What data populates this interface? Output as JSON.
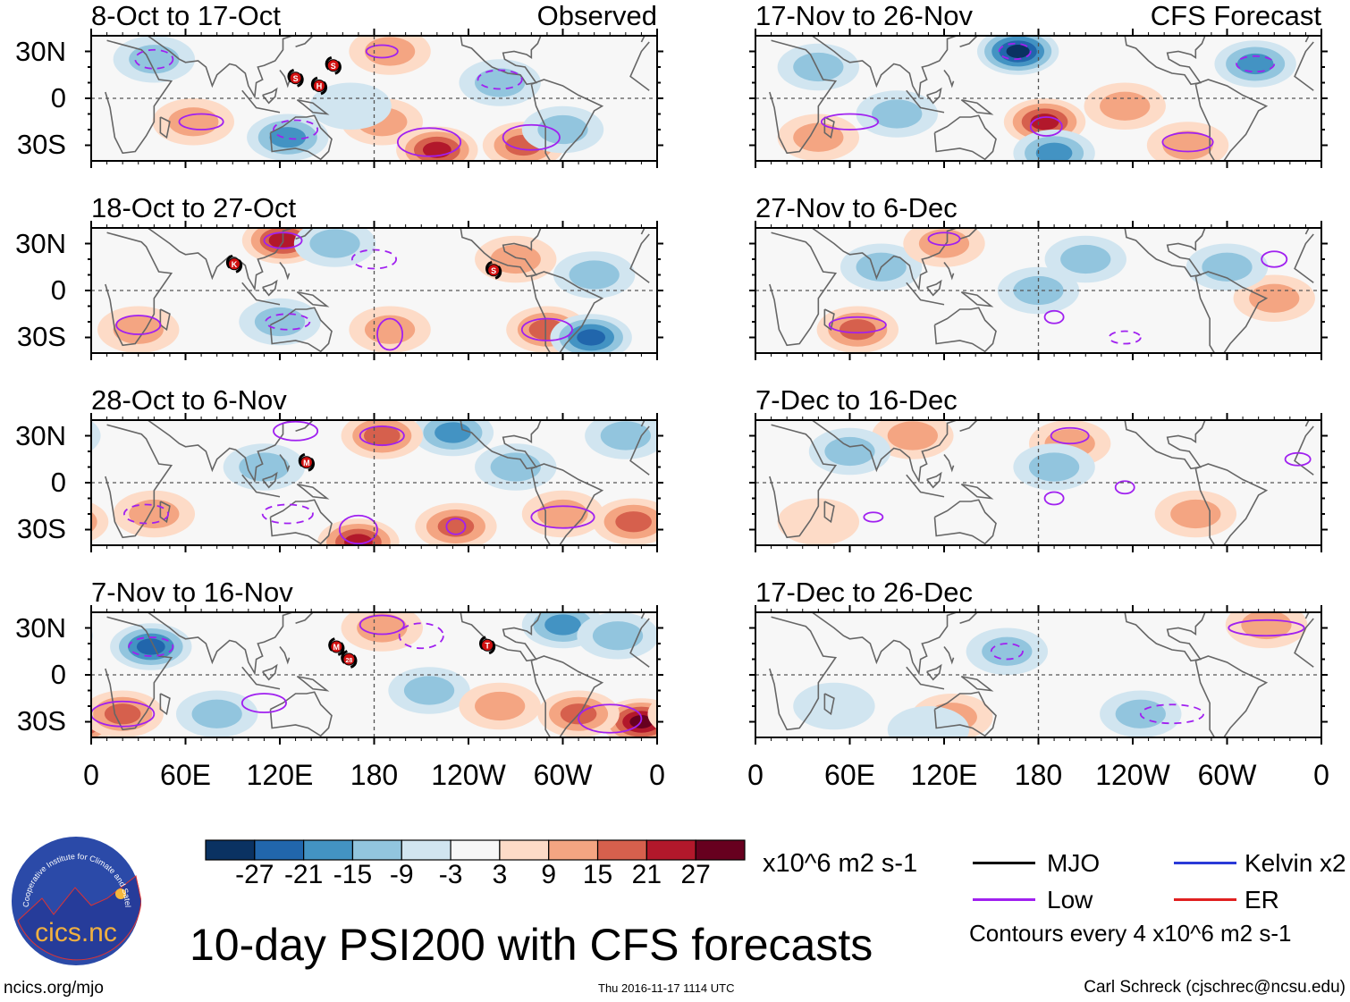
{
  "chart_data": {
    "type": "heatmap",
    "title": "10-day PSI200 with CFS forecasts",
    "column_labels": [
      "Observed",
      "CFS Forecast"
    ],
    "x_ticks": [
      "0",
      "60E",
      "120E",
      "180",
      "120W",
      "60W",
      "0"
    ],
    "y_ticks": [
      "30N",
      "0",
      "30S"
    ],
    "lat_range": [
      -40,
      40
    ],
    "lon_range": [
      0,
      360
    ],
    "panels": [
      {
        "title": "8-Oct to 17-Oct",
        "column": "Observed",
        "features": [
          [
            125,
            -25,
            -12
          ],
          [
            220,
            -33,
            21
          ],
          [
            275,
            -30,
            15
          ],
          [
            185,
            -15,
            9
          ],
          [
            190,
            30,
            9
          ],
          [
            40,
            25,
            -6
          ],
          [
            65,
            -15,
            9
          ],
          [
            300,
            -20,
            -9
          ],
          [
            260,
            10,
            -6
          ],
          [
            165,
            -5,
            -3
          ]
        ],
        "contours": [
          [
            70,
            -15,
            14,
            5,
            0
          ],
          [
            215,
            -28,
            20,
            9,
            0
          ],
          [
            280,
            -25,
            18,
            8,
            0
          ],
          [
            185,
            30,
            10,
            4,
            0
          ],
          [
            40,
            25,
            12,
            6,
            1
          ],
          [
            130,
            -20,
            14,
            6,
            1
          ],
          [
            260,
            12,
            14,
            6,
            1
          ]
        ],
        "storms": [
          {
            "label": "S",
            "lon": 130,
            "lat": 13
          },
          {
            "label": "H",
            "lon": 145,
            "lat": 8
          },
          {
            "label": "S",
            "lon": 154,
            "lat": 21
          }
        ]
      },
      {
        "title": "17-Nov to 26-Nov",
        "column": "CFS Forecast",
        "features": [
          [
            167,
            30,
            -27
          ],
          [
            184,
            -15,
            21
          ],
          [
            318,
            22,
            -15
          ],
          [
            190,
            -35,
            -12
          ],
          [
            40,
            20,
            -9
          ],
          [
            275,
            -30,
            9
          ],
          [
            235,
            -5,
            6
          ],
          [
            90,
            -10,
            -9
          ],
          [
            40,
            -25,
            9
          ]
        ],
        "contours": [
          [
            60,
            -15,
            18,
            5,
            0
          ],
          [
            185,
            -18,
            10,
            6,
            0
          ],
          [
            275,
            -28,
            16,
            6,
            0
          ],
          [
            318,
            22,
            12,
            5,
            1
          ],
          [
            165,
            30,
            10,
            5,
            1
          ]
        ],
        "storms": []
      },
      {
        "title": "18-Oct to 27-Oct",
        "column": "Observed",
        "features": [
          [
            122,
            32,
            21
          ],
          [
            155,
            30,
            -9
          ],
          [
            290,
            -25,
            12
          ],
          [
            318,
            -30,
            -18
          ],
          [
            30,
            -25,
            9
          ],
          [
            120,
            -20,
            -6
          ],
          [
            270,
            20,
            6
          ],
          [
            190,
            -25,
            6
          ],
          [
            320,
            10,
            -6
          ]
        ],
        "contours": [
          [
            122,
            32,
            12,
            5,
            0
          ],
          [
            290,
            -25,
            16,
            7,
            0
          ],
          [
            190,
            -28,
            8,
            10,
            0
          ],
          [
            30,
            -22,
            14,
            6,
            0
          ],
          [
            125,
            -20,
            14,
            5,
            1
          ],
          [
            180,
            20,
            14,
            6,
            1
          ]
        ],
        "storms": [
          {
            "label": "K",
            "lon": 91,
            "lat": 17
          },
          {
            "label": "S",
            "lon": 256,
            "lat": 13
          }
        ]
      },
      {
        "title": "27-Nov to 6-Dec",
        "column": "CFS Forecast",
        "features": [
          [
            80,
            15,
            -6
          ],
          [
            180,
            0,
            -6
          ],
          [
            65,
            -25,
            12
          ],
          [
            120,
            30,
            6
          ],
          [
            330,
            -5,
            6
          ],
          [
            210,
            20,
            -6
          ],
          [
            300,
            15,
            -6
          ]
        ],
        "contours": [
          [
            65,
            -22,
            18,
            5,
            0
          ],
          [
            120,
            33,
            10,
            4,
            0
          ],
          [
            190,
            -17,
            6,
            4,
            0
          ],
          [
            235,
            -30,
            10,
            4,
            1
          ],
          [
            330,
            20,
            8,
            5,
            0
          ]
        ],
        "storms": []
      },
      {
        "title": "28-Oct to 6-Nov",
        "column": "Observed",
        "features": [
          [
            270,
            10,
            -9
          ],
          [
            230,
            32,
            -12
          ],
          [
            185,
            30,
            12
          ],
          [
            170,
            -38,
            21
          ],
          [
            232,
            -28,
            15
          ],
          [
            345,
            -25,
            12
          ],
          [
            300,
            -20,
            9
          ],
          [
            110,
            10,
            -6
          ],
          [
            40,
            -20,
            9
          ],
          [
            340,
            30,
            -9
          ]
        ],
        "contours": [
          [
            185,
            30,
            14,
            6,
            0
          ],
          [
            170,
            -30,
            12,
            9,
            0
          ],
          [
            232,
            -28,
            6,
            5,
            0
          ],
          [
            300,
            -22,
            20,
            7,
            0
          ],
          [
            125,
            -20,
            16,
            6,
            1
          ],
          [
            35,
            -20,
            14,
            6,
            1
          ],
          [
            130,
            33,
            14,
            6,
            0
          ]
        ],
        "storms": [
          {
            "label": "M",
            "lon": 137,
            "lat": 13
          }
        ]
      },
      {
        "title": "7-Dec to 16-Dec",
        "column": "CFS Forecast",
        "features": [
          [
            100,
            30,
            6
          ],
          [
            200,
            25,
            6
          ],
          [
            60,
            20,
            -6
          ],
          [
            190,
            10,
            -6
          ],
          [
            280,
            -20,
            6
          ],
          [
            40,
            -25,
            3
          ]
        ],
        "contours": [
          [
            200,
            30,
            12,
            5,
            0
          ],
          [
            345,
            15,
            8,
            4,
            0
          ],
          [
            235,
            -3,
            6,
            4,
            0
          ],
          [
            75,
            -22,
            6,
            3,
            0
          ],
          [
            190,
            -10,
            6,
            4,
            0
          ]
        ],
        "storms": []
      },
      {
        "title": "7-Nov to 16-Nov",
        "column": "Observed",
        "features": [
          [
            38,
            18,
            -21
          ],
          [
            300,
            32,
            -15
          ],
          [
            335,
            25,
            -9
          ],
          [
            350,
            -30,
            27
          ],
          [
            310,
            -25,
            15
          ],
          [
            20,
            -25,
            15
          ],
          [
            185,
            30,
            9
          ],
          [
            80,
            -25,
            -9
          ],
          [
            215,
            -10,
            -6
          ],
          [
            260,
            -20,
            6
          ]
        ],
        "contours": [
          [
            185,
            32,
            14,
            6,
            0
          ],
          [
            20,
            -25,
            20,
            8,
            0
          ],
          [
            330,
            -28,
            20,
            9,
            0
          ],
          [
            110,
            -18,
            14,
            6,
            0
          ],
          [
            210,
            25,
            14,
            8,
            1
          ],
          [
            38,
            18,
            14,
            6,
            1
          ]
        ],
        "storms": [
          {
            "label": "M",
            "lon": 156,
            "lat": 18
          },
          {
            "label": "28",
            "lon": 164,
            "lat": 10
          },
          {
            "label": "T",
            "lon": 252,
            "lat": 19
          }
        ]
      },
      {
        "title": "17-Dec to 26-Dec",
        "column": "CFS Forecast",
        "features": [
          [
            160,
            15,
            -6
          ],
          [
            245,
            -25,
            -6
          ],
          [
            125,
            -27,
            9
          ],
          [
            325,
            32,
            9
          ],
          [
            50,
            -20,
            -3
          ],
          [
            110,
            -35,
            -3
          ]
        ],
        "contours": [
          [
            160,
            15,
            10,
            5,
            1
          ],
          [
            325,
            30,
            24,
            5,
            0
          ],
          [
            265,
            -25,
            20,
            6,
            1
          ]
        ],
        "storms": []
      }
    ],
    "colorbar": {
      "ticks": [
        "-27",
        "-21",
        "-15",
        "-9",
        "-3",
        "3",
        "9",
        "15",
        "21",
        "27"
      ],
      "colors": [
        "#0a3262",
        "#2166ac",
        "#4393c3",
        "#92c5de",
        "#d1e5f0",
        "#f7f7f7",
        "#fddbc7",
        "#f4a582",
        "#d6604d",
        "#b2182b",
        "#67001f"
      ],
      "units": "x10^6 m2 s-1"
    },
    "legend": [
      {
        "label": "MJO",
        "color": "#000000"
      },
      {
        "label": "Kelvin x2",
        "color": "#2a3ad8"
      },
      {
        "label": "Low",
        "color": "#a020f0"
      },
      {
        "label": "ER",
        "color": "#e02020"
      }
    ],
    "contour_note": "Contours every 4 x10^6 m2 s-1"
  },
  "footer": {
    "site": "ncics.org/mjo",
    "timestamp": "Thu 2016-11-17 1114 UTC",
    "author": "Carl Schreck (cjschrec@ncsu.edu)",
    "logo_text": "cics.nc",
    "logo_ring": "Cooperative Institute for Climate and Satellites"
  }
}
